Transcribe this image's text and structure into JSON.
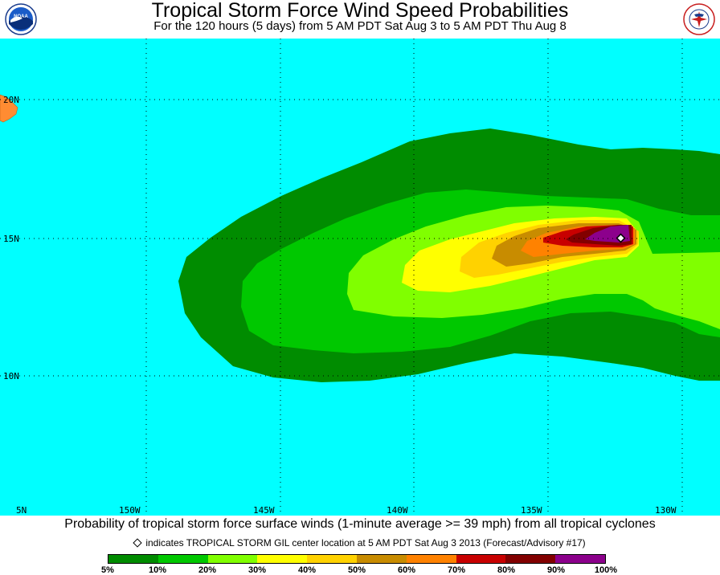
{
  "header": {
    "title": "Tropical Storm Force Wind Speed Probabilities",
    "subtitle": "For the 120 hours (5 days) from 5 AM PDT Sat Aug 3 to 5 AM PDT Thu Aug 8"
  },
  "logos": {
    "left": "NOAA",
    "right": "NATIONAL WEATHER SERVICE"
  },
  "map": {
    "lat_labels": [
      "20N",
      "15N",
      "10N",
      "5N"
    ],
    "lon_labels": [
      "150W",
      "145W",
      "140W",
      "135W",
      "130W"
    ],
    "storm_marker": "diamond-icon"
  },
  "caption": "Probability of tropical storm force surface winds (1-minute average >= 39 mph) from all tropical cyclones",
  "legend_note": "indicates TROPICAL STORM GIL center location at 5 AM PDT Sat Aug 3 2013 (Forecast/Advisory #17)",
  "colorbar": {
    "labels": [
      "5%",
      "10%",
      "20%",
      "30%",
      "40%",
      "50%",
      "60%",
      "70%",
      "80%",
      "90%",
      "100%"
    ],
    "colors": [
      "#008c00",
      "#00c800",
      "#80ff00",
      "#ffff00",
      "#ffd200",
      "#c88c00",
      "#ff8200",
      "#c80000",
      "#820000",
      "#8c008c"
    ]
  }
}
